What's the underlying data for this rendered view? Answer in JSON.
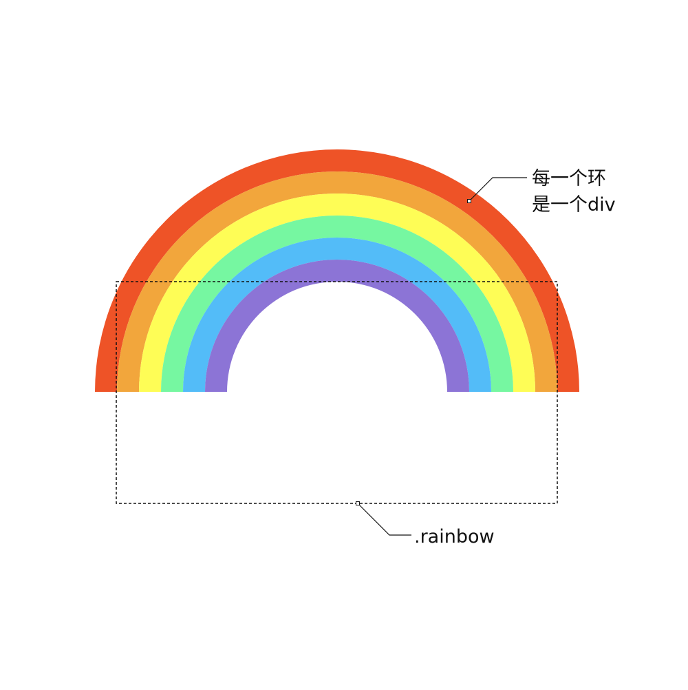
{
  "rings": [
    {
      "name": "red",
      "color": "#ee5327"
    },
    {
      "name": "orange",
      "color": "#f2a63c"
    },
    {
      "name": "yellow",
      "color": "#fefd56"
    },
    {
      "name": "green",
      "color": "#76f7a1"
    },
    {
      "name": "blue",
      "color": "#53bcf8"
    },
    {
      "name": "purple",
      "color": "#8c74d6"
    }
  ],
  "annotations": {
    "ring_line1": "每一个环",
    "ring_line2": "是一个div",
    "container_label": ".rainbow"
  },
  "styles": {
    "outline_color": "#111111",
    "background": "#ffffff"
  }
}
